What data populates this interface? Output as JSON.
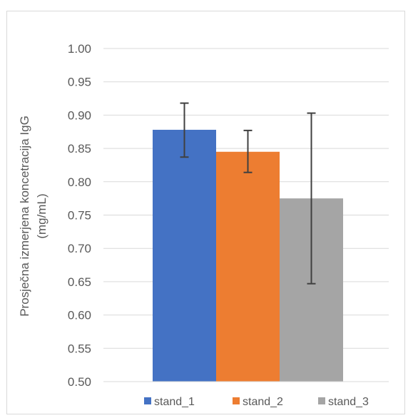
{
  "chart_data": {
    "type": "bar",
    "categories": [
      "stand_1",
      "stand_2",
      "stand_3"
    ],
    "series": [
      {
        "name": "stand_1",
        "value": 0.878,
        "error_low": 0.837,
        "error_high": 0.918,
        "color": "#4472c4"
      },
      {
        "name": "stand_2",
        "value": 0.845,
        "error_low": 0.814,
        "error_high": 0.877,
        "color": "#ed7d31"
      },
      {
        "name": "stand_3",
        "value": 0.775,
        "error_low": 0.647,
        "error_high": 0.903,
        "color": "#a5a5a5"
      }
    ],
    "title": "",
    "ylabel_line1": "Prosječna izmerjena koncetracija IgG",
    "ylabel_line2": "(mg/mL)",
    "ylim": [
      0.5,
      1.0
    ],
    "yticks": [
      "0.50",
      "0.55",
      "0.60",
      "0.65",
      "0.70",
      "0.75",
      "0.80",
      "0.85",
      "0.90",
      "0.95",
      "1.00"
    ],
    "grid": true,
    "legend_position": "bottom"
  }
}
